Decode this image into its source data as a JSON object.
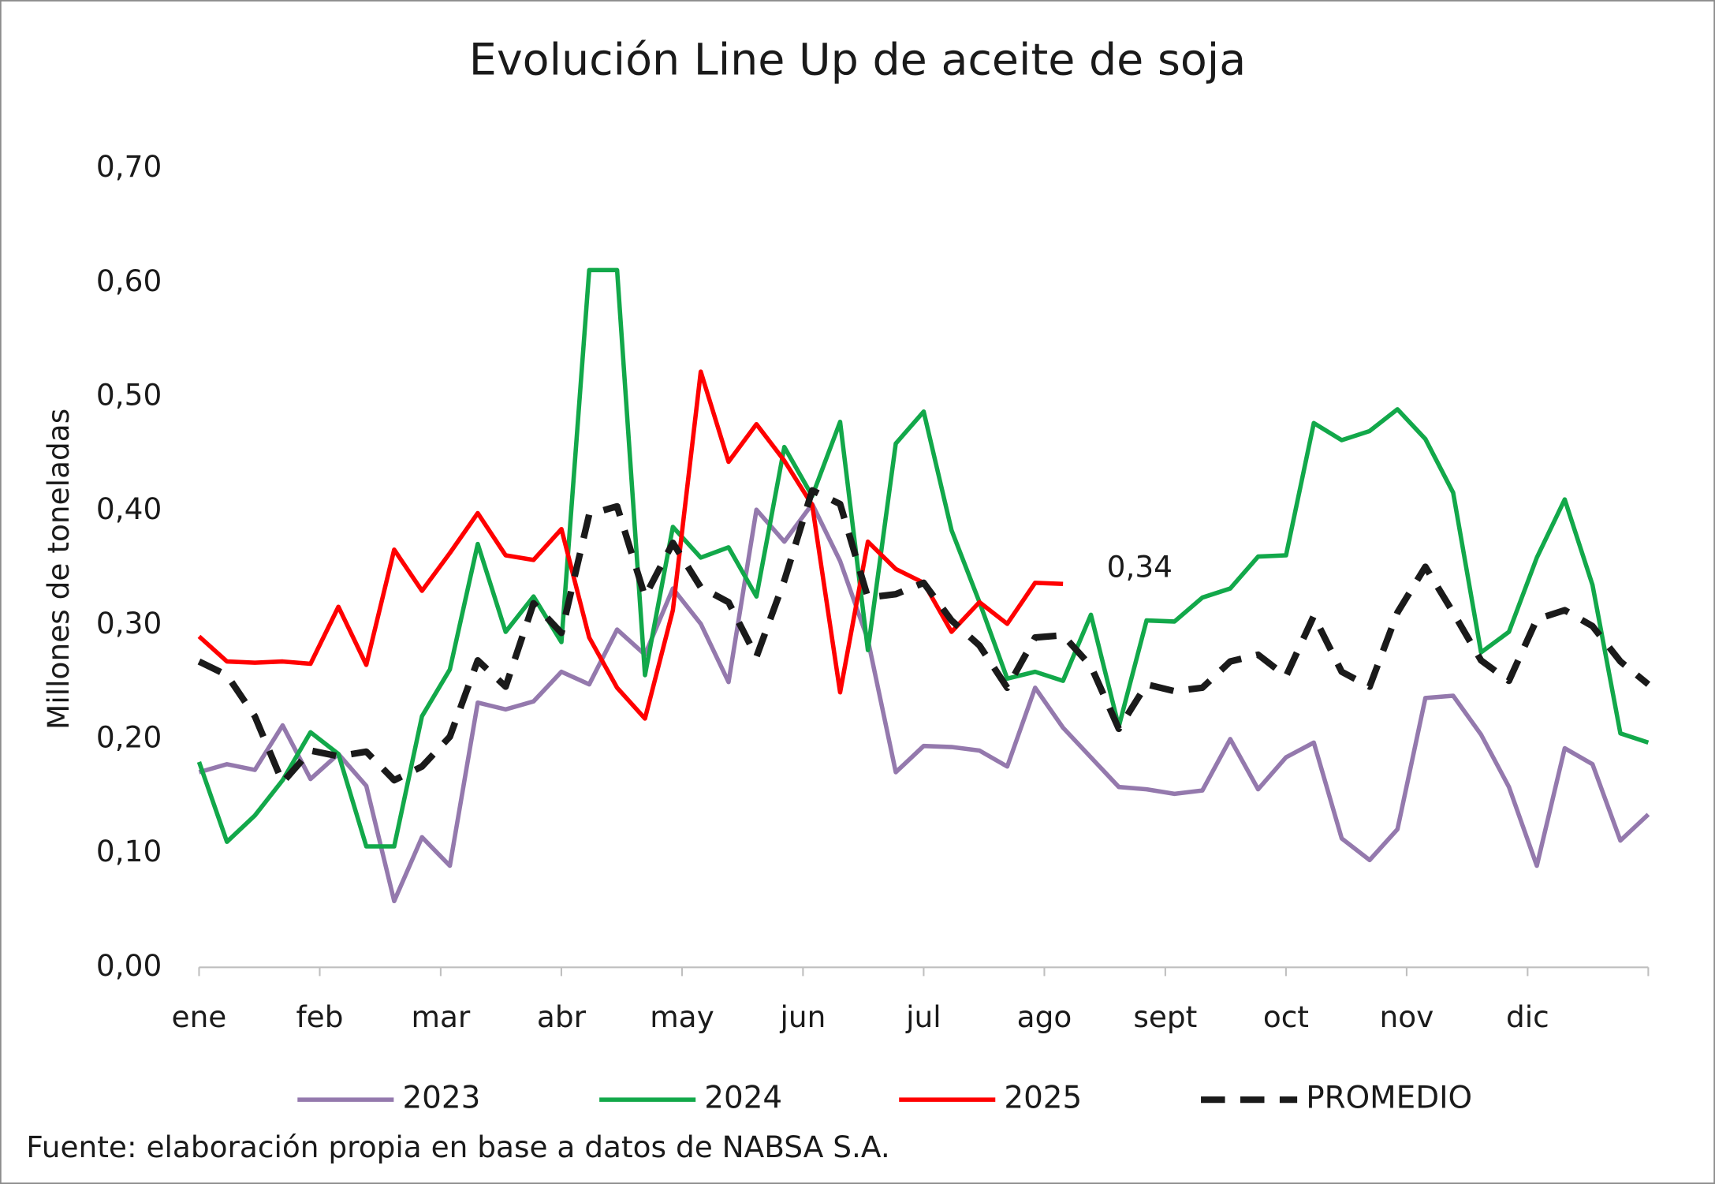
{
  "chart_data": {
    "type": "line",
    "title": "Evolución Line Up de aceite de soja",
    "y_label": "Millones de toneladas",
    "source": "Fuente: elaboración propia en base a datos de NABSA S.A.",
    "annotations": [
      {
        "text": "0,34",
        "series": 2,
        "index": 31
      }
    ],
    "xlim": [
      0,
      52
    ],
    "xticks": [
      {
        "value": 0,
        "label": "ene"
      },
      {
        "value": 4.33,
        "label": "feb"
      },
      {
        "value": 8.67,
        "label": "mar"
      },
      {
        "value": 13,
        "label": "abr"
      },
      {
        "value": 17.33,
        "label": "may"
      },
      {
        "value": 21.67,
        "label": "jun"
      },
      {
        "value": 26,
        "label": "jul"
      },
      {
        "value": 30.33,
        "label": "ago"
      },
      {
        "value": 34.67,
        "label": "sept"
      },
      {
        "value": 39,
        "label": "oct"
      },
      {
        "value": 43.33,
        "label": "nov"
      },
      {
        "value": 47.67,
        "label": "dic"
      }
    ],
    "ylim": [
      0,
      0.7
    ],
    "yticks": [
      {
        "value": 0,
        "label": "0,00"
      },
      {
        "value": 0.1,
        "label": "0,10"
      },
      {
        "value": 0.2,
        "label": "0,20"
      },
      {
        "value": 0.3,
        "label": "0,30"
      },
      {
        "value": 0.4,
        "label": "0,40"
      },
      {
        "value": 0.5,
        "label": "0,50"
      },
      {
        "value": 0.6,
        "label": "0,60"
      },
      {
        "value": 0.7,
        "label": "0,70"
      }
    ],
    "grid": false,
    "legend": "bottom",
    "series": [
      {
        "name": "2023",
        "color": "#9479ad",
        "dashed": false,
        "values": [
          0.171,
          0.178,
          0.173,
          0.212,
          0.165,
          0.187,
          0.159,
          0.058,
          0.114,
          0.089,
          0.232,
          0.226,
          0.233,
          0.259,
          0.248,
          0.296,
          0.274,
          0.332,
          0.301,
          0.25,
          0.401,
          0.373,
          0.406,
          0.356,
          0.287,
          0.171,
          0.194,
          0.193,
          0.19,
          0.176,
          0.245,
          0.21,
          0.184,
          0.158,
          0.156,
          0.152,
          0.155,
          0.2,
          0.156,
          0.184,
          0.197,
          0.113,
          0.094,
          0.121,
          0.236,
          0.238,
          0.204,
          0.158,
          0.089,
          0.192,
          0.178,
          0.111,
          0.134
        ]
      },
      {
        "name": "2024",
        "color": "#12a84a",
        "dashed": false,
        "values": [
          0.18,
          0.11,
          0.133,
          0.164,
          0.206,
          0.187,
          0.106,
          0.106,
          0.22,
          0.261,
          0.371,
          0.294,
          0.325,
          0.285,
          0.611,
          0.611,
          0.256,
          0.386,
          0.359,
          0.368,
          0.325,
          0.456,
          0.413,
          0.478,
          0.278,
          0.459,
          0.487,
          0.383,
          0.32,
          0.253,
          0.259,
          0.251,
          0.309,
          0.211,
          0.304,
          0.303,
          0.324,
          0.332,
          0.36,
          0.361,
          0.477,
          0.462,
          0.47,
          0.489,
          0.463,
          0.416,
          0.276,
          0.294,
          0.359,
          0.41,
          0.335,
          0.205,
          0.197
        ]
      },
      {
        "name": "2025",
        "color": "#ff0000",
        "dashed": false,
        "values": [
          0.29,
          0.268,
          0.267,
          0.268,
          0.266,
          0.316,
          0.265,
          0.366,
          0.33,
          0.363,
          0.398,
          0.361,
          0.357,
          0.384,
          0.289,
          0.245,
          0.218,
          0.313,
          0.522,
          0.443,
          0.476,
          0.444,
          0.405,
          0.241,
          0.373,
          0.349,
          0.337,
          0.294,
          0.32,
          0.301,
          0.337,
          0.336,
          null,
          null,
          null,
          null,
          null,
          null,
          null,
          null,
          null,
          null,
          null,
          null,
          null,
          null,
          null,
          null,
          null,
          null,
          null,
          null,
          null
        ]
      },
      {
        "name": "PROMEDIO",
        "color": "#1a1a1a",
        "dashed": true,
        "values": [
          0.268,
          0.256,
          0.22,
          0.162,
          0.19,
          0.185,
          0.189,
          0.164,
          0.176,
          0.202,
          0.269,
          0.246,
          0.319,
          0.293,
          0.397,
          0.404,
          0.325,
          0.372,
          0.333,
          0.32,
          0.272,
          0.339,
          0.418,
          0.406,
          0.324,
          0.327,
          0.337,
          0.304,
          0.282,
          0.245,
          0.289,
          0.291,
          0.264,
          0.209,
          0.248,
          0.242,
          0.245,
          0.268,
          0.274,
          0.255,
          0.308,
          0.259,
          0.246,
          0.311,
          0.351,
          0.311,
          0.269,
          0.251,
          0.305,
          0.313,
          0.299,
          0.268,
          0.248
        ]
      }
    ]
  }
}
